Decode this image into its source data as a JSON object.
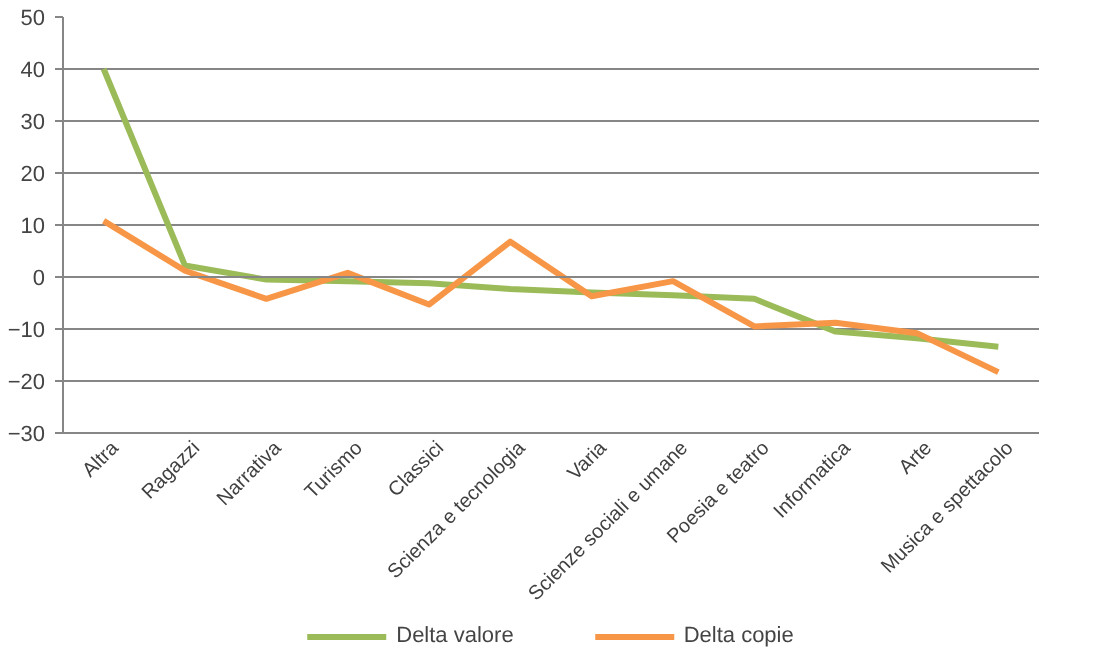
{
  "chart_data": {
    "type": "line",
    "categories": [
      "Altra",
      "Ragazzi",
      "Narrativa",
      "Turismo",
      "Classici",
      "Scienza e tecnologia",
      "Varia",
      "Scienze sociali e umane",
      "Poesia e teatro",
      "Informatica",
      "Arte",
      "Musica e spettacolo"
    ],
    "series": [
      {
        "name": "Delta valore",
        "color": "#9bbb59",
        "values": [
          40,
          2.2,
          -0.5,
          -0.8,
          -1.2,
          -2.3,
          -3,
          -3.5,
          -4.2,
          -10.5,
          -11.8,
          -13.4
        ]
      },
      {
        "name": "Delta copie",
        "color": "#f79646",
        "values": [
          10.8,
          1.2,
          -4.2,
          0.8,
          -5.3,
          6.8,
          -3.7,
          -0.8,
          -9.5,
          -8.8,
          -10.8,
          -18.3
        ]
      }
    ],
    "ylim": [
      -30,
      50
    ],
    "yticks": [
      -30,
      -20,
      -10,
      0,
      10,
      20,
      30,
      40,
      50
    ],
    "grid": "y",
    "legend": "bottom",
    "marker": "none",
    "line_style": "solid"
  }
}
